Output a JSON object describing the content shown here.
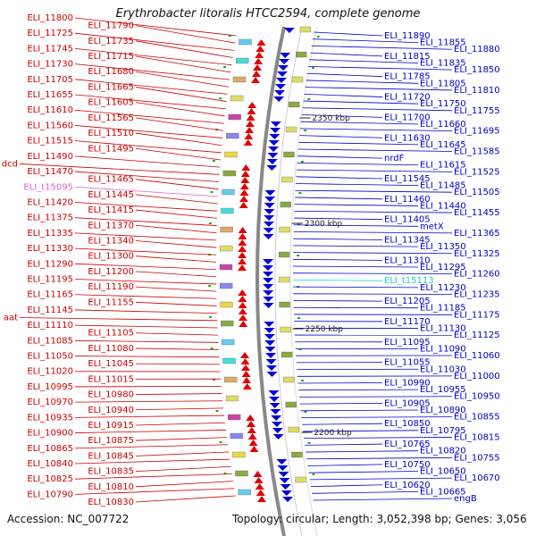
{
  "title": "Erythrobacter litoralis HTCC2594, complete genome",
  "footer": {
    "accession": "Accession: NC_007722",
    "topology": "Topology: circular; Length: 3,052,398 bp; Genes: 3,056"
  },
  "kbp_ticks": [
    "2350 kbp",
    "2300 kbp",
    "2250 kbp",
    "2200 kbp"
  ],
  "left_genes": [
    "ELI_11800",
    "ELI_11790",
    "ELI_11725",
    "ELI_11735",
    "ELI_11745",
    "ELI_11715",
    "ELI_11730",
    "ELI_11680",
    "ELI_11705",
    "ELI_11665",
    "ELI_11655",
    "ELI_11605",
    "ELI_11610",
    "ELI_11565",
    "ELI_11560",
    "ELI_11510",
    "ELI_11515",
    "ELI_11495",
    "ELI_11490",
    "dcd",
    "ELI_11470",
    "ELI_11465",
    "ELI_t15095",
    "ELI_11445",
    "ELI_11420",
    "ELI_11415",
    "ELI_11375",
    "ELI_11370",
    "ELI_11335",
    "ELI_11340",
    "ELI_11330",
    "ELI_11300",
    "ELI_11290",
    "ELI_11200",
    "ELI_11195",
    "ELI_11190",
    "ELI_11165",
    "ELI_11155",
    "ELI_11145",
    "aat",
    "ELI_11110",
    "ELI_11105",
    "ELI_11085",
    "ELI_11080",
    "ELI_11050",
    "ELI_11045",
    "ELI_11020",
    "ELI_11015",
    "ELI_10995",
    "ELI_10980",
    "ELI_10970",
    "ELI_10940",
    "ELI_10935",
    "ELI_10915",
    "ELI_10900",
    "ELI_10875",
    "ELI_10865",
    "ELI_10845",
    "ELI_10840",
    "ELI_10835",
    "ELI_10825",
    "ELI_10810",
    "ELI_10790",
    "ELI_10830"
  ],
  "right_genes": [
    "ELI_11890",
    "ELI_11855",
    "ELI_11880",
    "ELI_11815",
    "ELI_11835",
    "ELI_11850",
    "ELI_11785",
    "ELI_11805",
    "ELI_11810",
    "ELI_11720",
    "ELI_11750",
    "ELI_11755",
    "ELI_11700",
    "ELI_11660",
    "ELI_11695",
    "ELI_11630",
    "ELI_11645",
    "ELI_11585",
    "nrdF",
    "ELI_11615",
    "ELI_11525",
    "ELI_11545",
    "ELI_11485",
    "ELI_11505",
    "ELI_11460",
    "ELI_11440",
    "ELI_11455",
    "ELI_11405",
    "metX",
    "ELI_11365",
    "ELI_11345",
    "ELI_11350",
    "ELI_11325",
    "ELI_11310",
    "ELI_11295",
    "ELI_11260",
    "ELI_t15113",
    "ELI_11230",
    "ELI_11235",
    "ELI_11205",
    "ELI_11185",
    "ELI_11175",
    "ELI_11170",
    "ELI_11130",
    "ELI_11125",
    "ELI_11095",
    "ELI_11090",
    "ELI_11060",
    "ELI_11055",
    "ELI_11030",
    "ELI_11000",
    "ELI_10990",
    "ELI_10955",
    "ELI_10950",
    "ELI_10905",
    "ELI_10890",
    "ELI_10855",
    "ELI_10850",
    "ELI_10795",
    "ELI_10815",
    "ELI_10765",
    "ELI_10820",
    "ELI_10755",
    "ELI_10750",
    "ELI_10650",
    "ELI_10670",
    "ELI_10620",
    "ELI_10665",
    "engB"
  ]
}
